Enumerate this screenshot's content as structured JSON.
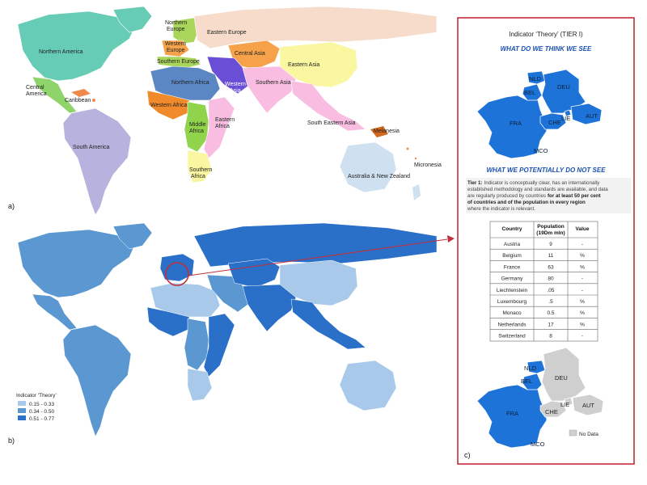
{
  "panel_labels": {
    "a": "a)",
    "b": "b)",
    "c": "c)"
  },
  "map_a": {
    "regions": [
      {
        "name": "Northern America",
        "color": "#66ccb6"
      },
      {
        "name": "Central America",
        "color": "#8fd46a"
      },
      {
        "name": "Caribbean",
        "color": "#f08a4b"
      },
      {
        "name": "South America",
        "color": "#b8b3de"
      },
      {
        "name": "Northern Europe",
        "color": "#a9d65a"
      },
      {
        "name": "Western Europe",
        "color": "#f5a24a"
      },
      {
        "name": "Southern Europe",
        "color": "#a9d65a"
      },
      {
        "name": "Eastern Europe",
        "color": "#f7dccb"
      },
      {
        "name": "Central Asia",
        "color": "#f5a24a"
      },
      {
        "name": "Eastern Asia",
        "color": "#faf7a0"
      },
      {
        "name": "Southern Asia",
        "color": "#f8bde0"
      },
      {
        "name": "Western Asia",
        "color": "#6a4fd6"
      },
      {
        "name": "Northern Africa",
        "color": "#5b87c4"
      },
      {
        "name": "Western Africa",
        "color": "#f08a2a"
      },
      {
        "name": "Middle Africa",
        "color": "#8fd44a"
      },
      {
        "name": "Eastern Africa",
        "color": "#f8bde0"
      },
      {
        "name": "Southern Africa",
        "color": "#faf7a0"
      },
      {
        "name": "South Eastern Asia",
        "color": "#f8bde0"
      },
      {
        "name": "Melanesia",
        "color": "#d2691e"
      },
      {
        "name": "Micronesia",
        "color": "#f08a4b"
      },
      {
        "name": "Australia & New Zealand",
        "color": "#cfe0f0"
      }
    ]
  },
  "map_b": {
    "legend": {
      "title": "Indicator ‘Theory’",
      "items": [
        {
          "label": "0.15 - 0.33",
          "color": "#a9c9ea"
        },
        {
          "label": "0.34 - 0.50",
          "color": "#5b97d0"
        },
        {
          "label": "0.51 - 0.77",
          "color": "#2a6fc8"
        }
      ]
    }
  },
  "panel_c": {
    "title": "Indicator ‘Theory’ (TIER I)",
    "subtitle_see": "WHAT DO WE THINK WE SEE",
    "subtitle_not_see": "WHAT  WE POTENTIALLY  DO NOT SEE",
    "tier_text_lines": [
      "Indicator is conceptually clear, has an internationally",
      "established methodology and standards are available, and data",
      "are regularly produced by countries"
    ],
    "tier_label": "Tier 1:",
    "tier_bold_1": "for at least 50 per cent",
    "tier_bold_2": "of countries and of the population in every region",
    "tier_tail": "where the indicator is relevant.",
    "country_codes": [
      "NLD",
      "BEL",
      "DEU",
      "FRA",
      "CHE",
      "LIE",
      "AUT",
      "MCO"
    ],
    "no_data_label": "No Data",
    "colors": {
      "accent": "#1e73d8",
      "nodata": "#cfcfcf",
      "frame": "#c0303a"
    },
    "table": {
      "headers": [
        "Country",
        "Population",
        "(19Dm mln)",
        "Value"
      ],
      "rows": [
        [
          "Austria",
          "9",
          "-"
        ],
        [
          "Belgium",
          "11",
          "%"
        ],
        [
          "France",
          "63",
          "%"
        ],
        [
          "Germany",
          "80",
          "-"
        ],
        [
          "Liechtenstein",
          ".05",
          "-"
        ],
        [
          "Luxembourg",
          ".5",
          "%"
        ],
        [
          "Monaco",
          "0.5",
          "%"
        ],
        [
          "Netherlands",
          "17",
          "%"
        ],
        [
          "Switzerland",
          "8",
          "-"
        ]
      ]
    }
  }
}
